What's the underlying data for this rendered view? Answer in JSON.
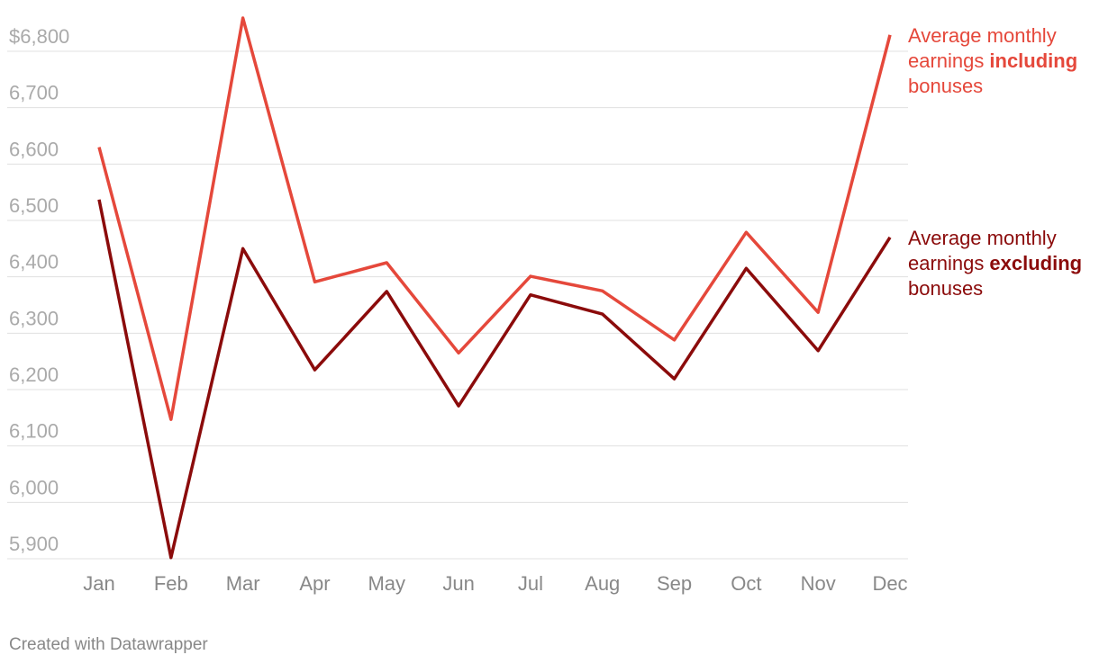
{
  "chart_data": {
    "type": "line",
    "categories": [
      "Jan",
      "Feb",
      "Mar",
      "Apr",
      "May",
      "Jun",
      "Jul",
      "Aug",
      "Sep",
      "Oct",
      "Nov",
      "Dec"
    ],
    "series": [
      {
        "name_parts": [
          "Average monthly",
          "earnings",
          "including",
          "bonuses"
        ],
        "color": "#e5483b",
        "values": [
          6630,
          6147,
          6859,
          6391,
          6425,
          6265,
          6401,
          6375,
          6288,
          6479,
          6337,
          6829
        ]
      },
      {
        "name_parts": [
          "Average monthly",
          "earnings",
          "excluding",
          "bonuses"
        ],
        "color": "#8b0b0b",
        "values": [
          6537,
          5902,
          6450,
          6235,
          6374,
          6171,
          6368,
          6334,
          6219,
          6415,
          6269,
          6470
        ]
      }
    ],
    "ylim": [
      5900,
      6800
    ],
    "yticks": [
      {
        "value": 6800,
        "label": "$6,800"
      },
      {
        "value": 6700,
        "label": "6,700"
      },
      {
        "value": 6600,
        "label": "6,600"
      },
      {
        "value": 6500,
        "label": "6,500"
      },
      {
        "value": 6400,
        "label": "6,400"
      },
      {
        "value": 6300,
        "label": "6,300"
      },
      {
        "value": 6200,
        "label": "6,200"
      },
      {
        "value": 6100,
        "label": "6,100"
      },
      {
        "value": 6000,
        "label": "6,000"
      },
      {
        "value": 5900,
        "label": "5,900"
      }
    ],
    "grid": true,
    "credit": "Created with Datawrapper"
  }
}
